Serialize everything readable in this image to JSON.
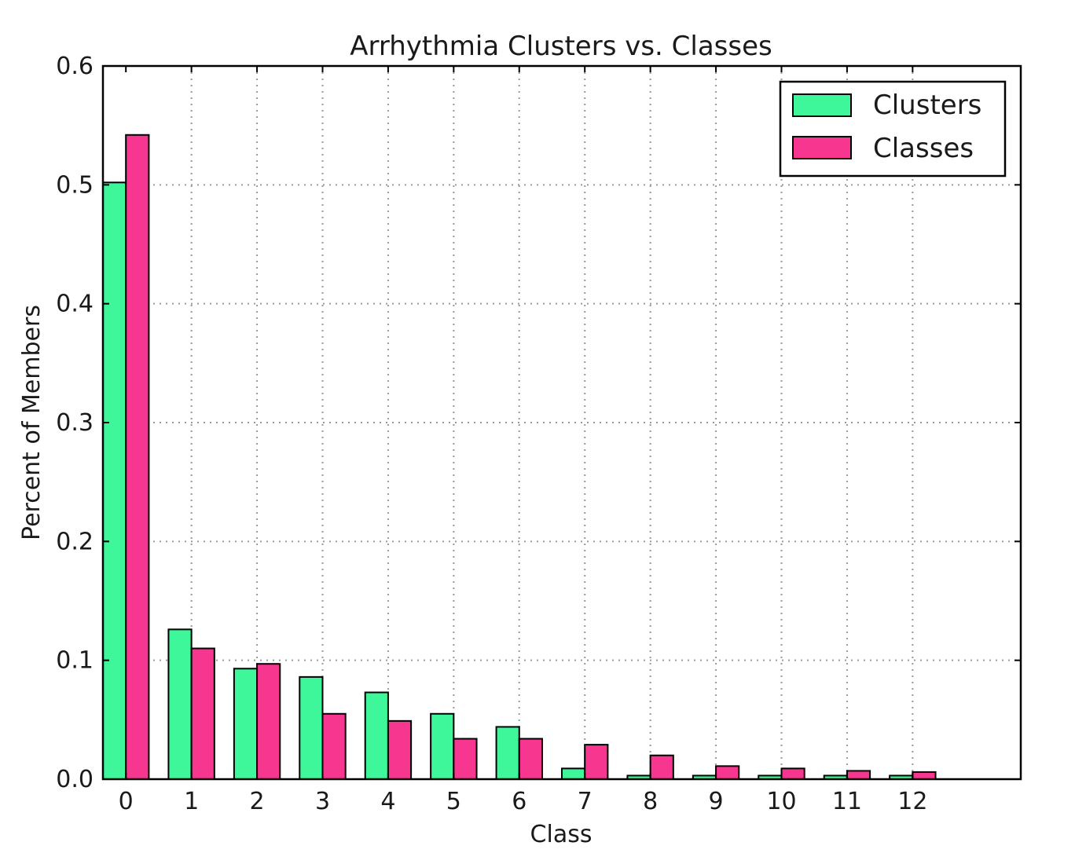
{
  "chart_data": {
    "type": "bar",
    "title": "Arrhythmia Clusters vs. Classes",
    "xlabel": "Class",
    "ylabel": "Percent of Members",
    "categories": [
      "0",
      "1",
      "2",
      "3",
      "4",
      "5",
      "6",
      "7",
      "8",
      "9",
      "10",
      "11",
      "12"
    ],
    "series": [
      {
        "name": "Clusters",
        "color": "#3ef79a",
        "values": [
          0.502,
          0.126,
          0.093,
          0.086,
          0.073,
          0.055,
          0.044,
          0.009,
          0.003,
          0.003,
          0.003,
          0.003,
          0.003
        ]
      },
      {
        "name": "Classes",
        "color": "#f7368f",
        "values": [
          0.542,
          0.11,
          0.097,
          0.055,
          0.049,
          0.034,
          0.034,
          0.029,
          0.02,
          0.011,
          0.009,
          0.007,
          0.006
        ]
      }
    ],
    "ylim": [
      0,
      0.6
    ],
    "xlim": [
      -0.35,
      13.65
    ],
    "yticks": [
      "0.0",
      "0.1",
      "0.2",
      "0.3",
      "0.4",
      "0.5",
      "0.6"
    ],
    "grid": true,
    "legend_position": "top-right"
  }
}
